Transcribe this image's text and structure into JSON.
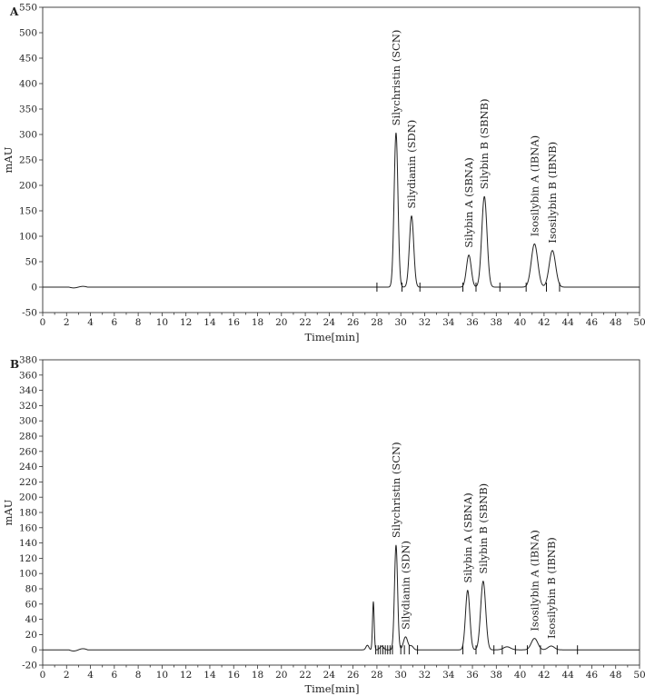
{
  "chart_data": [
    {
      "type": "line",
      "panel_label": "A",
      "xlabel": "Time[min]",
      "ylabel": "mAU",
      "xlim": [
        0,
        50
      ],
      "ylim": [
        -50,
        550
      ],
      "xticks": [
        0,
        2,
        4,
        6,
        8,
        10,
        12,
        14,
        16,
        18,
        20,
        22,
        24,
        26,
        28,
        30,
        32,
        34,
        36,
        38,
        40,
        42,
        44,
        46,
        48,
        50
      ],
      "yticks": [
        -50,
        0,
        50,
        100,
        150,
        200,
        250,
        300,
        350,
        400,
        450,
        500,
        550
      ],
      "peaks": [
        {
          "name": "Silychristin (SCN)",
          "rt": 29.6,
          "height": 303,
          "width": 0.16
        },
        {
          "name": "Silydianin (SDN)",
          "rt": 30.9,
          "height": 140,
          "width": 0.18
        },
        {
          "name": "Silybin A (SBNA)",
          "rt": 35.7,
          "height": 63,
          "width": 0.2
        },
        {
          "name": "Silybin B (SBNB)",
          "rt": 37.0,
          "height": 178,
          "width": 0.22
        },
        {
          "name": "Isosilybin A (IBNA)",
          "rt": 41.2,
          "height": 85,
          "width": 0.27
        },
        {
          "name": "Isosilybin B (IBNB)",
          "rt": 42.7,
          "height": 72,
          "width": 0.27
        }
      ],
      "minor_peaks": [],
      "baseline_marks": [
        28.0,
        30.1,
        31.6,
        35.2,
        36.3,
        38.3,
        40.5,
        42.2,
        43.3
      ]
    },
    {
      "type": "line",
      "panel_label": "B",
      "xlabel": "Time[min]",
      "ylabel": "mAU",
      "xlim": [
        0,
        50
      ],
      "ylim": [
        -20,
        380
      ],
      "xticks": [
        0,
        2,
        4,
        6,
        8,
        10,
        12,
        14,
        16,
        18,
        20,
        22,
        24,
        26,
        28,
        30,
        32,
        34,
        36,
        38,
        40,
        42,
        44,
        46,
        48,
        50
      ],
      "yticks": [
        -20,
        0,
        20,
        40,
        60,
        80,
        100,
        120,
        140,
        160,
        180,
        200,
        220,
        240,
        260,
        280,
        300,
        320,
        340,
        360,
        380
      ],
      "peaks": [
        {
          "name": "Silychristin (SCN)",
          "rt": 29.6,
          "height": 137,
          "width": 0.13
        },
        {
          "name": "Silydianin (SDN)",
          "rt": 30.4,
          "height": 17,
          "width": 0.18
        },
        {
          "name": "Silybin A (SBNA)",
          "rt": 35.6,
          "height": 78,
          "width": 0.18
        },
        {
          "name": "Silybin B (SBNB)",
          "rt": 36.9,
          "height": 90,
          "width": 0.21
        },
        {
          "name": "Isosilybin A (IBNA)",
          "rt": 41.2,
          "height": 15,
          "width": 0.27
        },
        {
          "name": "Isosilybin B (IBNB)",
          "rt": 42.6,
          "height": 5,
          "width": 0.27
        }
      ],
      "minor_peaks": [
        {
          "rt": 27.7,
          "height": 63,
          "width": 0.07
        },
        {
          "rt": 27.2,
          "height": 6,
          "width": 0.12
        },
        {
          "rt": 28.4,
          "height": 5,
          "width": 0.15
        },
        {
          "rt": 30.9,
          "height": 5,
          "width": 0.15
        },
        {
          "rt": 38.9,
          "height": 4,
          "width": 0.3
        }
      ],
      "baseline_marks": [
        27.9,
        28.1,
        28.3,
        28.5,
        28.7,
        28.9,
        29.1,
        29.3,
        30.0,
        30.3,
        30.7,
        31.4,
        35.2,
        36.3,
        37.8,
        38.5,
        39.6,
        40.6,
        41.7,
        43.1,
        44.8
      ]
    }
  ]
}
